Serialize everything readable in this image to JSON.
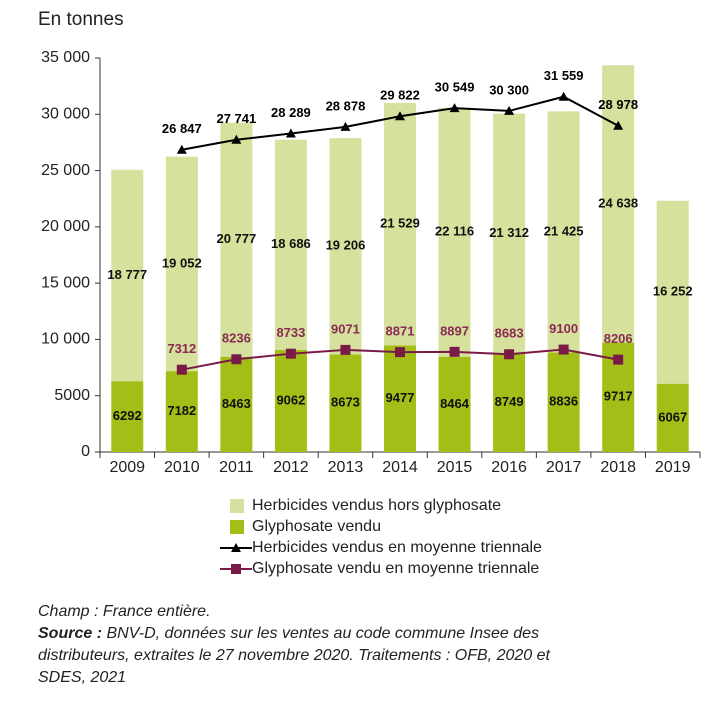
{
  "chart_data": {
    "type": "bar",
    "stacked": true,
    "axis_title": "En tonnes",
    "categories": [
      "2009",
      "2010",
      "2011",
      "2012",
      "2013",
      "2014",
      "2015",
      "2016",
      "2017",
      "2018",
      "2019"
    ],
    "ylim": [
      0,
      35000
    ],
    "yticks": [
      0,
      5000,
      {
        "value": 10000,
        "label": "10 000"
      },
      {
        "value": 15000,
        "label": "15 000"
      },
      {
        "value": 20000,
        "label": "20 000"
      },
      {
        "value": 25000,
        "label": "25 000"
      },
      {
        "value": 30000,
        "label": "30 000"
      },
      {
        "value": 35000,
        "label": "35 000"
      }
    ],
    "series": [
      {
        "name": "Herbicides vendus hors glyphosate",
        "kind": "bar",
        "color": "#d5e19c",
        "label_color": "#111111",
        "values": [
          18777,
          19052,
          20777,
          18686,
          19206,
          21529,
          22116,
          21312,
          21425,
          24638,
          16252
        ],
        "value_labels": [
          "18 777",
          "19 052",
          "20 777",
          "18 686",
          "19 206",
          "21 529",
          "22 116",
          "21 312",
          "21 425",
          "24 638",
          "16 252"
        ]
      },
      {
        "name": "Glyphosate vendu",
        "kind": "bar",
        "color": "#a3bf17",
        "label_color": "#111111",
        "values": [
          6292,
          7182,
          8463,
          9062,
          8673,
          9477,
          8464,
          8749,
          8836,
          9717,
          6067
        ]
      },
      {
        "name": "Herbicides vendus en moyenne triennale",
        "kind": "line",
        "marker": "triangle",
        "color": "#000000",
        "label_color": "#000000",
        "values": [
          null,
          26847,
          27741,
          28289,
          28878,
          29822,
          30549,
          30300,
          31559,
          28978,
          null
        ],
        "value_labels": [
          null,
          "26 847",
          "27 741",
          "28 289",
          "28 878",
          "29 822",
          "30 549",
          "30 300",
          "31 559",
          "28 978",
          null
        ]
      },
      {
        "name": "Glyphosate vendu en moyenne triennale",
        "kind": "line",
        "marker": "square",
        "color": "#7a1b47",
        "label_color": "#8a2a55",
        "values": [
          null,
          7312,
          8236,
          8733,
          9071,
          8871,
          8897,
          8683,
          9100,
          8206,
          null
        ]
      }
    ],
    "stack_order": [
      1,
      0
    ],
    "notes": {
      "champ": "Champ : France entière.",
      "source_label": "Source :",
      "source_lines": [
        "BNV-D, données sur les ventes au code commune Insee des",
        "distributeurs, extraites le 27 novembre 2020. Traitements : OFB, 2020 et",
        "SDES, 2021"
      ]
    }
  }
}
